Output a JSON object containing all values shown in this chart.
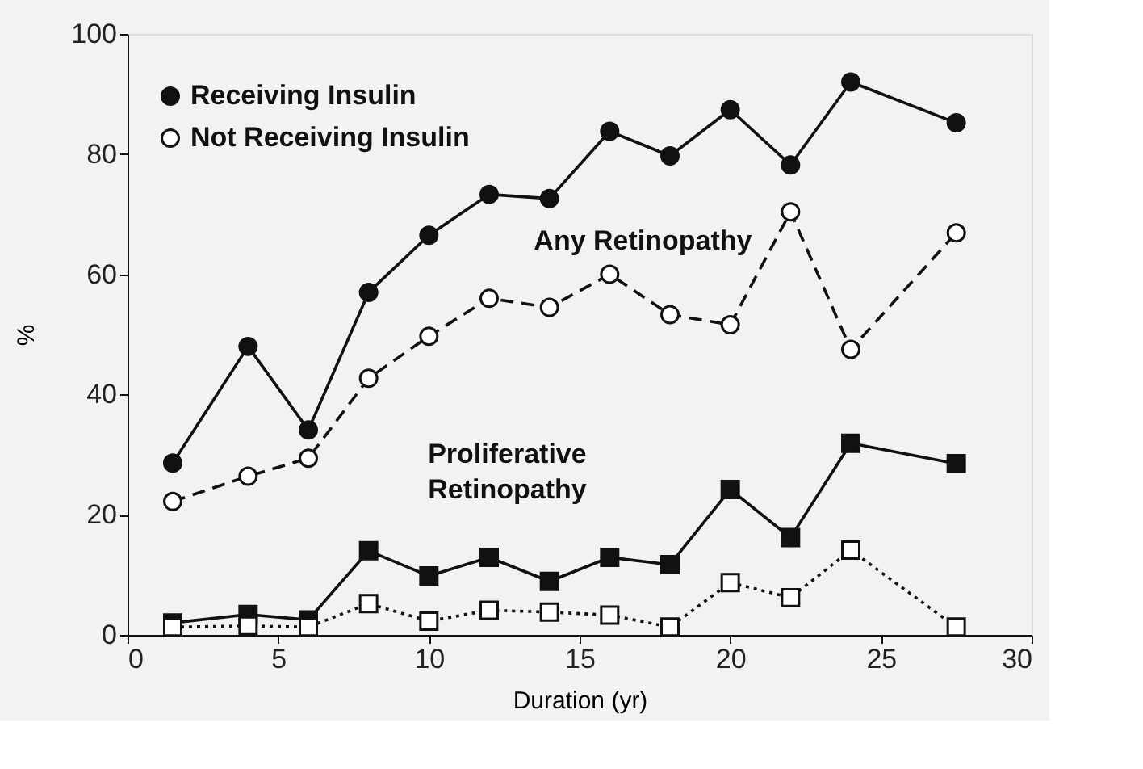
{
  "chart_data": {
    "type": "line",
    "xlabel": "Duration (yr)",
    "ylabel": "%",
    "xlim": [
      0,
      30
    ],
    "ylim": [
      0,
      100
    ],
    "xticks": [
      0,
      5,
      10,
      15,
      20,
      25,
      30
    ],
    "yticks": [
      0,
      20,
      40,
      60,
      80,
      100
    ],
    "grid": false,
    "legend": "top left",
    "x": [
      1.5,
      4,
      6,
      8,
      10,
      12,
      14,
      16,
      18,
      20,
      22,
      24,
      27.5
    ],
    "series": [
      {
        "name": "Receiving Insulin",
        "color": "#111111",
        "marker": "circle",
        "line_style": "solid",
        "values": [
          28.6,
          48,
          34.1,
          57,
          66.5,
          73.3,
          72.6,
          83.8,
          79.7,
          87.4,
          78.2,
          92,
          85.2
        ]
      },
      {
        "name": "Not Receiving Insulin",
        "color": "#111111",
        "marker": "circle",
        "line_style": "dashed",
        "values": [
          22.2,
          26.4,
          29.4,
          42.7,
          49.7,
          56,
          54.5,
          60,
          53.3,
          51.6,
          70.4,
          47.5,
          66.9
        ]
      },
      {
        "color": "#111111",
        "marker": "square",
        "line_style": "solid",
        "values": [
          2,
          3.4,
          2.5,
          14,
          9.8,
          12.9,
          8.9,
          12.9,
          11.7,
          24.2,
          16.2,
          31.9,
          28.5
        ]
      },
      {
        "color": "#111111",
        "marker": "square",
        "line_style": "dotted",
        "values": [
          1.3,
          1.5,
          1.3,
          5.2,
          2.3,
          4.1,
          3.8,
          3.3,
          1.3,
          8.7,
          6.2,
          14.1,
          1.3
        ]
      }
    ],
    "annotations": [
      "Any Retinopathy",
      "Proliferative Retinopathy"
    ]
  }
}
